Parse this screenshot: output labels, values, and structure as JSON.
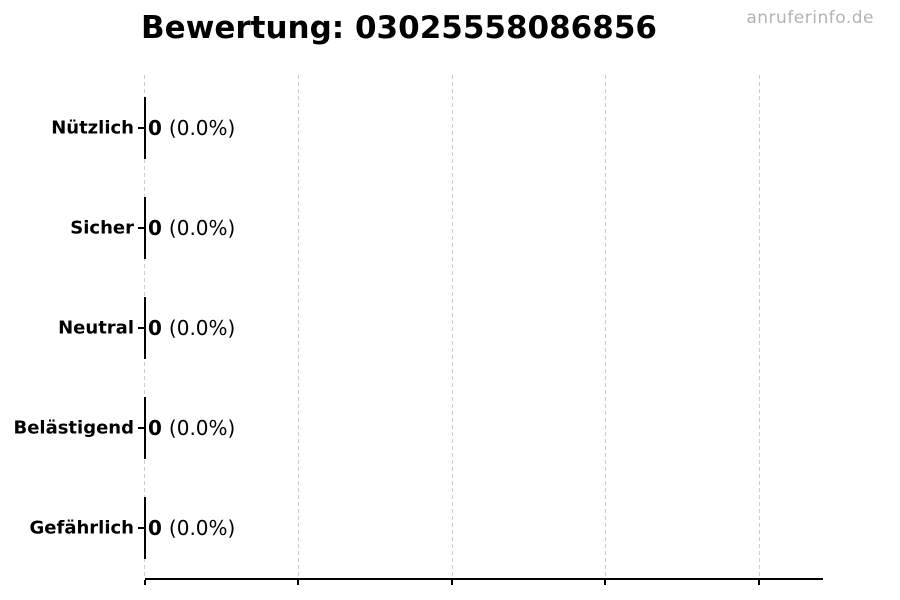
{
  "watermark": "anruferinfo.de",
  "chart_data": {
    "type": "bar",
    "orientation": "horizontal",
    "title": "Bewertung: 03025558086856",
    "categories": [
      "Nützlich",
      "Sicher",
      "Neutral",
      "Belästigend",
      "Gefährlich"
    ],
    "values": [
      0,
      0,
      0,
      0,
      0
    ],
    "percent_labels": [
      "(0.0%)",
      "(0.0%)",
      "(0.0%)",
      "(0.0%)",
      "(0.0%)"
    ],
    "bar_annotations": [
      "0 (0.0%)",
      "0 (0.0%)",
      "0 (0.0%)",
      "0 (0.0%)",
      "0 (0.0%)"
    ],
    "xlabel": "",
    "ylabel": "",
    "xlim": [
      0,
      4.4
    ],
    "x_gridlines": [
      0,
      1,
      2,
      3,
      4
    ],
    "x_tick_labels": [],
    "grid": true,
    "grid_style": "dashed",
    "legend": false
  },
  "colors": {
    "background": "#ffffff",
    "text": "#000000",
    "axis": "#000000",
    "gridline": "#cccccc",
    "watermark": "#b3b3b3"
  }
}
